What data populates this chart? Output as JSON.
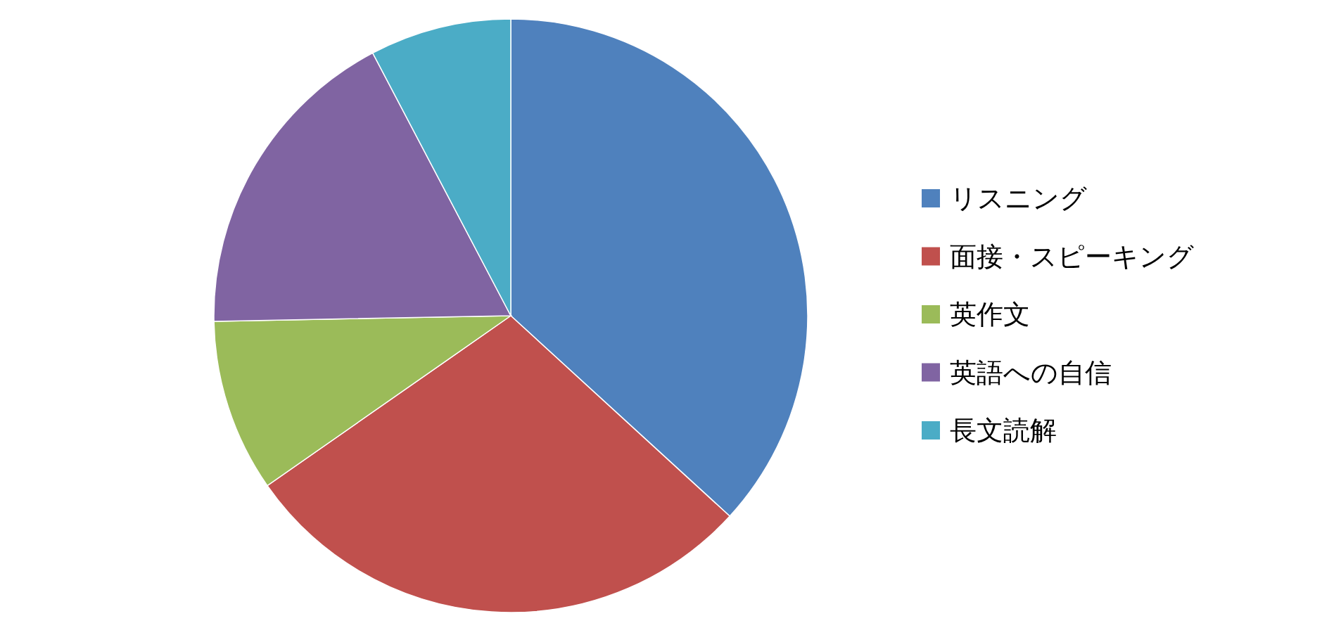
{
  "chart_data": {
    "type": "pie",
    "categories": [
      "リスニング",
      "面接・スピーキング",
      "英作文",
      "英語への自信",
      "長文読解"
    ],
    "values": [
      36.8,
      28.5,
      9.4,
      17.6,
      7.7
    ],
    "colors": [
      "#4f81bd",
      "#c0504d",
      "#9bbb59",
      "#8064a2",
      "#4bacc6"
    ],
    "legend": "right"
  }
}
